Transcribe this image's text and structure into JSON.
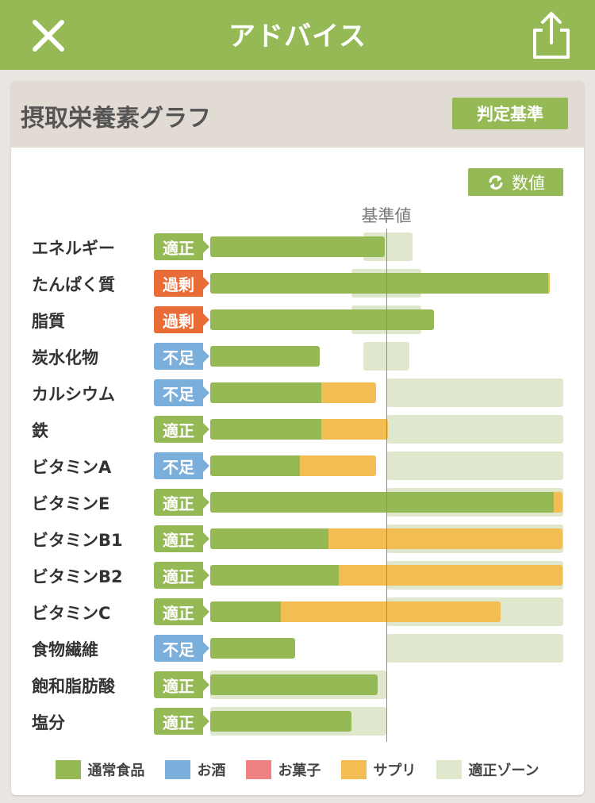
{
  "header": {
    "title": "アドバイス"
  },
  "card": {
    "title": "摂取栄養素グラフ",
    "criteria_button": "判定基準",
    "value_button": "数値",
    "reference_label": "基準値"
  },
  "colors": {
    "header": "#95b954",
    "food": "#95b954",
    "alcohol": "#7aaedb",
    "sweets": "#ee8282",
    "supplement": "#f2bd52",
    "zone": "#dfe8cd",
    "badge_ok": "#95b954",
    "badge_over": "#e96c36",
    "badge_under": "#7aaedb"
  },
  "legend": [
    {
      "key": "food",
      "label": "通常食品"
    },
    {
      "key": "alcohol",
      "label": "お酒"
    },
    {
      "key": "sweets",
      "label": "お菓子"
    },
    {
      "key": "supplement",
      "label": "サプリ"
    },
    {
      "key": "zone",
      "label": "適正ゾーン"
    }
  ],
  "chart_data": {
    "type": "bar",
    "reference_label": "基準値",
    "reference_value": 100,
    "unit": "% of reference",
    "rows": [
      {
        "name": "エネルギー",
        "status": "適正",
        "status_kind": "ok",
        "food": 99,
        "supplement": 0,
        "zone": [
          87,
          115
        ]
      },
      {
        "name": "たんぱく質",
        "status": "過剰",
        "status_kind": "over",
        "food": 192,
        "supplement": 1,
        "zone": [
          80,
          120
        ]
      },
      {
        "name": "脂質",
        "status": "過剰",
        "status_kind": "over",
        "food": 127,
        "supplement": 0,
        "zone": [
          80,
          120
        ]
      },
      {
        "name": "炭水化物",
        "status": "不足",
        "status_kind": "under",
        "food": 62,
        "supplement": 0,
        "zone": [
          87,
          113
        ]
      },
      {
        "name": "カルシウム",
        "status": "不足",
        "status_kind": "under",
        "food": 63,
        "supplement": 31,
        "zone": [
          100,
          null
        ]
      },
      {
        "name": "鉄",
        "status": "適正",
        "status_kind": "ok",
        "food": 63,
        "supplement": 38,
        "zone": [
          100,
          null
        ]
      },
      {
        "name": "ビタミンA",
        "status": "不足",
        "status_kind": "under",
        "food": 51,
        "supplement": 43,
        "zone": [
          100,
          null
        ]
      },
      {
        "name": "ビタミンE",
        "status": "適正",
        "status_kind": "ok",
        "food": 195,
        "supplement": 5,
        "zone": [
          100,
          null
        ]
      },
      {
        "name": "ビタミンB1",
        "status": "適正",
        "status_kind": "ok",
        "food": 67,
        "supplement": 133,
        "zone": [
          100,
          null
        ]
      },
      {
        "name": "ビタミンB2",
        "status": "適正",
        "status_kind": "ok",
        "food": 73,
        "supplement": 127,
        "zone": [
          100,
          null
        ]
      },
      {
        "name": "ビタミンC",
        "status": "適正",
        "status_kind": "ok",
        "food": 40,
        "supplement": 125,
        "zone": [
          100,
          null
        ]
      },
      {
        "name": "食物繊維",
        "status": "不足",
        "status_kind": "under",
        "food": 48,
        "supplement": 0,
        "zone": [
          100,
          null
        ]
      },
      {
        "name": "飽和脂肪酸",
        "status": "適正",
        "status_kind": "ok",
        "food": 95,
        "supplement": 0,
        "zone": [
          0,
          100
        ]
      },
      {
        "name": "塩分",
        "status": "適正",
        "status_kind": "ok",
        "food": 80,
        "supplement": 0,
        "zone": [
          0,
          100
        ]
      }
    ]
  }
}
